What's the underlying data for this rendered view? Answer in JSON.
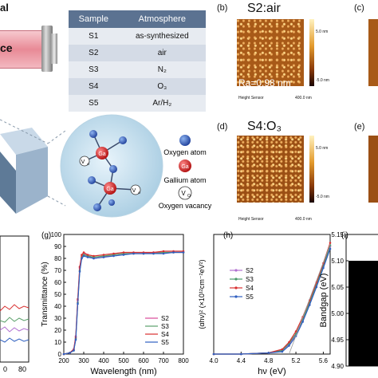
{
  "left_labels": {
    "top": "al",
    "device": "ce"
  },
  "table": {
    "headers": [
      "Sample",
      "Atmosphere"
    ],
    "rows": [
      [
        "S1",
        "as-synthesized"
      ],
      [
        "S2",
        "air"
      ],
      [
        "S3",
        "N₂"
      ],
      [
        "S4",
        "O₃"
      ],
      [
        "S5",
        "Ar/H₂"
      ]
    ]
  },
  "legend_atoms": {
    "oxygen": "Oxygen atom",
    "gallium": "Gallium atom",
    "vacancy": "Oxygen vacancy",
    "ga_symbol": "Ga",
    "vo_symbol": "V",
    "vo_sub": "O"
  },
  "afm": {
    "b": {
      "tag": "(b)",
      "title": "S2:air",
      "ra": "Ra=0.98 nm",
      "scale_top": "5.0 nm",
      "scale_bot": "-5.0 nm",
      "sensor": "Height Sensor",
      "bar": "400.0 nm"
    },
    "c": {
      "tag": "(c)"
    },
    "d": {
      "tag": "(d)",
      "title": "S4:O₃",
      "ra": "Ra=1.29 nm",
      "scale_top": "5.0 nm",
      "scale_bot": "-5.0 nm",
      "sensor": "Height Sensor",
      "bar": "400.0 nm"
    },
    "e": {
      "tag": "(e)"
    }
  },
  "chart_data": [
    {
      "type": "line",
      "panel": "(g)",
      "xlabel": "Wavelength (nm)",
      "ylabel": "Transmittance (%)",
      "xlim": [
        200,
        800
      ],
      "ylim": [
        0,
        100
      ],
      "xticks": [
        "200",
        "300",
        "400",
        "500",
        "600",
        "700",
        "800"
      ],
      "yticks": [
        "0",
        "10",
        "20",
        "30",
        "40",
        "50",
        "60",
        "70",
        "80",
        "90",
        "100"
      ],
      "x": [
        200,
        230,
        250,
        260,
        270,
        280,
        290,
        300,
        320,
        350,
        400,
        450,
        500,
        550,
        600,
        650,
        700,
        750,
        800
      ],
      "series": [
        {
          "name": "S2",
          "color": "#d94a9a",
          "values": [
            0,
            1,
            4,
            15,
            45,
            72,
            82,
            84,
            82,
            80,
            81,
            83,
            84,
            84,
            84,
            85,
            85,
            85,
            85
          ]
        },
        {
          "name": "S3",
          "color": "#5aa06a",
          "values": [
            0,
            1,
            3,
            13,
            43,
            70,
            81,
            83,
            82,
            81,
            82,
            83,
            84,
            84,
            84,
            84,
            85,
            85,
            85
          ]
        },
        {
          "name": "S4",
          "color": "#d83030",
          "values": [
            0,
            1,
            4,
            14,
            46,
            73,
            83,
            85,
            83,
            82,
            83,
            84,
            85,
            85,
            85,
            85,
            86,
            86,
            86
          ]
        },
        {
          "name": "S5",
          "color": "#2f5fc0",
          "values": [
            0,
            1,
            3,
            12,
            42,
            69,
            80,
            82,
            81,
            80,
            81,
            82,
            83,
            84,
            84,
            84,
            84,
            85,
            85
          ]
        }
      ]
    },
    {
      "type": "line",
      "panel": "(h)",
      "xlabel": "hν (eV)",
      "ylabel": "(αhν)² (×10¹²cm⁻²eV²)",
      "xlim": [
        4.0,
        5.7
      ],
      "xticks": [
        "4.0",
        "4.4",
        "4.8",
        "5.2",
        "5.6"
      ],
      "x": [
        4.0,
        4.4,
        4.8,
        5.0,
        5.1,
        5.2,
        5.3,
        5.4,
        5.5,
        5.6,
        5.7
      ],
      "series": [
        {
          "name": "S2",
          "color": "#b06fd0",
          "values": [
            0,
            0,
            0.01,
            0.03,
            0.08,
            0.16,
            0.28,
            0.42,
            0.57,
            0.73,
            0.9
          ]
        },
        {
          "name": "S3",
          "color": "#4a9a6a",
          "values": [
            0,
            0,
            0.01,
            0.03,
            0.09,
            0.17,
            0.29,
            0.43,
            0.58,
            0.74,
            0.91
          ]
        },
        {
          "name": "S4",
          "color": "#d83030",
          "values": [
            0,
            0,
            0.01,
            0.04,
            0.1,
            0.19,
            0.31,
            0.45,
            0.6,
            0.76,
            0.93
          ]
        },
        {
          "name": "S5",
          "color": "#2f5fc0",
          "values": [
            0,
            0,
            0.01,
            0.02,
            0.07,
            0.15,
            0.27,
            0.41,
            0.56,
            0.72,
            0.88
          ]
        }
      ]
    },
    {
      "type": "bar",
      "panel": "(i)",
      "ylabel": "Bandgap (eV)",
      "ylim": [
        4.9,
        5.15
      ],
      "yticks": [
        "4.90",
        "4.95",
        "5.00",
        "5.05",
        "5.10",
        "5.15"
      ],
      "values": [
        5.1
      ]
    }
  ],
  "left_partial_plot": {
    "xticks": [
      "0",
      "80"
    ]
  }
}
